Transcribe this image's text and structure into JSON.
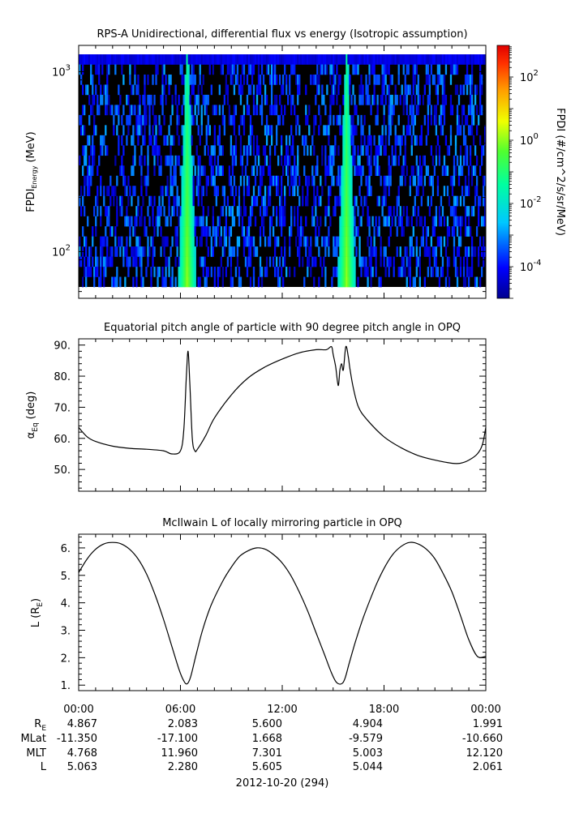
{
  "chart_data": [
    {
      "type": "heatmap",
      "title": "RPS-A Unidirectional, differential flux vs energy (Isotropic assumption)",
      "ylabel_main": "FPDI",
      "ylabel_sub": "Energy",
      "ylabel_unit": "(MeV)",
      "y_scale": "log",
      "ylim": [
        55,
        1400
      ],
      "y_ticks": [
        {
          "value": 100,
          "base": "10",
          "exp": "2"
        },
        {
          "value": 1000,
          "base": "10",
          "exp": "3"
        }
      ],
      "xlim": [
        0,
        24
      ],
      "colorbar": {
        "label": "FPDI (#/cm^2/s/sr/MeV)",
        "scale": "log",
        "range": [
          1e-05,
          1000
        ],
        "ticks": [
          {
            "value": 0.0001,
            "base": "10",
            "exp": "-4"
          },
          {
            "value": 0.01,
            "base": "10",
            "exp": "-2"
          },
          {
            "value": 1,
            "base": "10",
            "exp": "0"
          },
          {
            "value": 100,
            "base": "10",
            "exp": "2"
          }
        ]
      },
      "features": [
        {
          "center_hour": 6.4,
          "description": "radiation belt crossing, flux ~1 at low energy"
        },
        {
          "center_hour": 15.8,
          "description": "radiation belt crossing, flux ~1 at low energy"
        }
      ]
    },
    {
      "type": "line",
      "title": "Equatorial pitch angle of particle with 90 degree pitch angle in OPQ",
      "ylabel": "α",
      "ylabel_sub": "Eq",
      "ylabel_unit": "(deg)",
      "ylim": [
        43,
        92
      ],
      "y_ticks": [
        "50.",
        "60.",
        "70.",
        "80.",
        "90."
      ],
      "xlim": [
        0,
        24
      ],
      "series": [
        {
          "x": [
            0,
            0.5,
            1,
            2,
            3,
            4,
            5,
            5.5,
            6,
            6.2,
            6.35,
            6.45,
            6.55,
            6.7,
            6.85,
            7.0,
            7.5,
            8,
            9,
            10,
            11,
            12,
            13,
            14,
            14.6,
            14.9,
            15.0,
            15.15,
            15.3,
            15.4,
            15.5,
            15.6,
            15.75,
            15.9,
            16.0,
            16.2,
            16.5,
            17,
            18,
            19,
            20,
            21,
            22,
            22.5,
            23,
            23.5,
            23.8,
            24
          ],
          "y": [
            63.5,
            60.5,
            59,
            57.5,
            56.8,
            56.5,
            56,
            55,
            56,
            63,
            80,
            88,
            78,
            60,
            56,
            56.5,
            61,
            66.5,
            74,
            79.5,
            83,
            85.5,
            87.5,
            88.5,
            88.5,
            89.5,
            87,
            83,
            77,
            82,
            84,
            82,
            89.5,
            86,
            82,
            76,
            70,
            66,
            60.5,
            57,
            54.5,
            53,
            52,
            52,
            53,
            55,
            58,
            63.5
          ]
        }
      ]
    },
    {
      "type": "line",
      "title": "McIlwain L of locally mirroring particle in OPQ",
      "ylabel": "L (R",
      "ylabel_sub": "E",
      "ylabel_unit": ")",
      "ylim": [
        0.8,
        6.5
      ],
      "y_ticks": [
        "1.",
        "2.",
        "3.",
        "4.",
        "5.",
        "6."
      ],
      "xlim": [
        0,
        24
      ],
      "series": [
        {
          "x": [
            0,
            0.5,
            1,
            1.5,
            2,
            2.5,
            3,
            3.5,
            4,
            4.5,
            5,
            5.5,
            5.9,
            6.2,
            6.4,
            6.6,
            6.9,
            7.3,
            7.8,
            8.5,
            9,
            9.5,
            10,
            10.5,
            11,
            11.5,
            12,
            12.5,
            13,
            13.5,
            14,
            14.5,
            14.9,
            15.2,
            15.5,
            15.7,
            15.95,
            16.3,
            16.8,
            17.5,
            18,
            18.5,
            19,
            19.5,
            20,
            20.5,
            21,
            21.5,
            22,
            22.5,
            23,
            23.5,
            24
          ],
          "y": [
            5.1,
            5.6,
            5.95,
            6.15,
            6.2,
            6.15,
            5.95,
            5.6,
            5.05,
            4.3,
            3.4,
            2.4,
            1.6,
            1.15,
            1.05,
            1.3,
            2.05,
            3.0,
            3.9,
            4.8,
            5.3,
            5.7,
            5.9,
            6.0,
            5.95,
            5.75,
            5.45,
            5.0,
            4.4,
            3.7,
            2.9,
            2.1,
            1.45,
            1.1,
            1.05,
            1.25,
            1.8,
            2.55,
            3.5,
            4.6,
            5.25,
            5.75,
            6.05,
            6.2,
            6.15,
            5.95,
            5.6,
            5.05,
            4.4,
            3.55,
            2.65,
            2.05,
            2.05
          ]
        }
      ]
    }
  ],
  "x_ticks": [
    "00:00",
    "06:00",
    "12:00",
    "18:00",
    "00:00"
  ],
  "ephemeris": {
    "labels": [
      {
        "main": "R",
        "sub": "E"
      },
      {
        "main": "MLat",
        "sub": ""
      },
      {
        "main": "MLT",
        "sub": ""
      },
      {
        "main": "L",
        "sub": ""
      }
    ],
    "rows": [
      [
        "4.867",
        "2.083",
        "5.600",
        "4.904",
        "1.991"
      ],
      [
        "-11.350",
        "-17.100",
        "1.668",
        "-9.579",
        "-10.660"
      ],
      [
        "4.768",
        "11.960",
        "7.301",
        "5.003",
        "12.120"
      ],
      [
        "5.063",
        "2.280",
        "5.605",
        "5.044",
        "2.061"
      ]
    ]
  },
  "date_label": "2012-10-20 (294)"
}
